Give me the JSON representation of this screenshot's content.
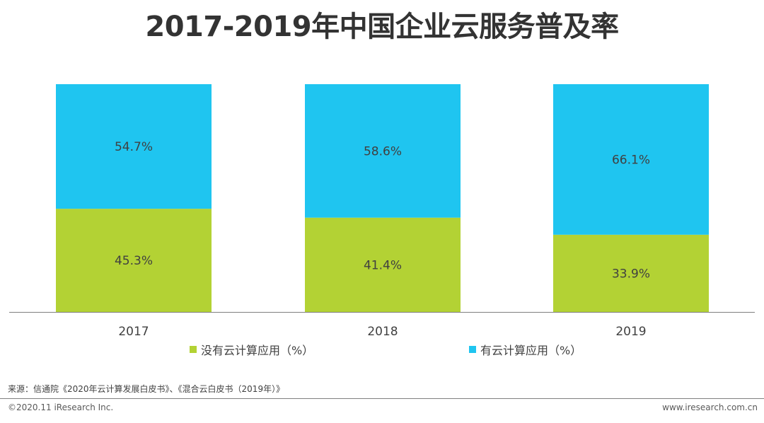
{
  "title": "2017-2019年中国企业云服务普及率",
  "chart_data": {
    "type": "bar",
    "stacked": true,
    "categories": [
      "2017",
      "2018",
      "2019"
    ],
    "series": [
      {
        "name": "没有云计算应用（%）",
        "values": [
          45.3,
          41.4,
          33.9
        ],
        "labels": [
          "45.3%",
          "41.4%",
          "33.9%"
        ],
        "color": "#b3d234"
      },
      {
        "name": "有云计算应用（%）",
        "values": [
          54.7,
          58.6,
          66.1
        ],
        "labels": [
          "54.7%",
          "58.6%",
          "66.1%"
        ],
        "color": "#1fc5f0"
      }
    ],
    "ylim": [
      0,
      100
    ],
    "grid": false,
    "legend": "bottom"
  },
  "source": "来源：信通院《2020年云计算发展白皮书》、《混合云白皮书（2019年）》",
  "footer": {
    "copyright": "©2020.11 iResearch Inc.",
    "website": "www.iresearch.com.cn"
  }
}
